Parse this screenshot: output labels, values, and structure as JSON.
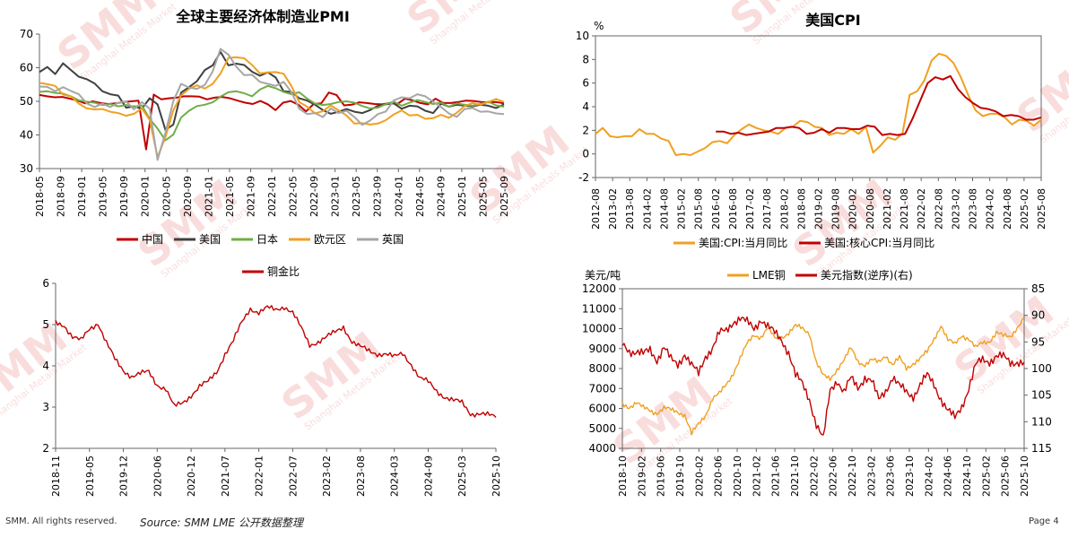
{
  "page": {
    "copyright": "SMM. All rights reserved.",
    "source": "Source: SMM  LME 公开数据整理",
    "page_label": "Page 4",
    "watermark_logo": "SMM",
    "watermark_sub": "Shanghai Metals Market"
  },
  "chart_data": [
    {
      "id": "pmi",
      "type": "line",
      "title": "全球主要经济体制造业PMI",
      "ylim": [
        30,
        70
      ],
      "yticks": [
        "30",
        "40",
        "50",
        "60",
        "70"
      ],
      "xticks": [
        "2018-05",
        "2018-09",
        "2019-01",
        "2019-05",
        "2019-09",
        "2020-01",
        "2020-05",
        "2020-09",
        "2021-01",
        "2021-05",
        "2021-09",
        "2022-01",
        "2022-05",
        "2022-09",
        "2023-01",
        "2023-05",
        "2023-09",
        "2024-01",
        "2024-05",
        "2024-09",
        "2025-01",
        "2025-05",
        "2025-09"
      ],
      "legend": [
        "中国",
        "美国",
        "日本",
        "欧元区",
        "英国"
      ],
      "series": [
        {
          "name": "中国",
          "color": "#c00000",
          "values": [
            51.9,
            51.5,
            51.2,
            51.3,
            50.8,
            50.2,
            49.4,
            50.0,
            49.5,
            49.2,
            49.4,
            49.8,
            50.0,
            50.2,
            35.7,
            52.0,
            50.6,
            50.9,
            51.1,
            51.5,
            51.5,
            51.4,
            50.6,
            51.1,
            51.3,
            50.9,
            50.2,
            49.6,
            49.2,
            50.1,
            49.1,
            47.4,
            49.6,
            50.1,
            49.0,
            47.0,
            49.2,
            49.4,
            52.6,
            51.9,
            48.8,
            49.0,
            49.7,
            49.5,
            49.2,
            49.1,
            49.5,
            49.2,
            50.8,
            50.3,
            49.5,
            49.1,
            50.8,
            49.5,
            49.5,
            49.8,
            50.2,
            50.1,
            49.8,
            49.7,
            49.8,
            49.4
          ]
        },
        {
          "name": "美国",
          "color": "#404040",
          "values": [
            58.7,
            60.2,
            58.1,
            61.3,
            59.3,
            57.3,
            56.6,
            55.3,
            53.0,
            52.1,
            51.7,
            48.1,
            48.5,
            47.8,
            50.9,
            49.1,
            41.5,
            43.1,
            52.6,
            54.2,
            56.0,
            59.3,
            60.7,
            64.7,
            60.7,
            61.2,
            60.8,
            58.8,
            57.6,
            58.6,
            57.1,
            53.0,
            52.8,
            50.9,
            50.2,
            49.0,
            47.4,
            46.3,
            46.9,
            47.7,
            46.9,
            46.5,
            47.4,
            48.7,
            49.1,
            49.4,
            47.8,
            48.7,
            48.5,
            47.2,
            46.5,
            49.3,
            48.4,
            49.0,
            48.7,
            48.5,
            49.0,
            48.7,
            48.0,
            49.1
          ]
        },
        {
          "name": "日本",
          "color": "#70ad47",
          "values": [
            52.8,
            53.0,
            52.5,
            52.3,
            51.5,
            50.3,
            49.9,
            49.6,
            48.9,
            49.2,
            48.5,
            48.9,
            48.4,
            48.8,
            44.8,
            41.9,
            38.4,
            40.1,
            45.2,
            47.2,
            48.6,
            49.0,
            49.7,
            51.4,
            52.7,
            53.0,
            52.4,
            51.5,
            53.5,
            54.6,
            53.9,
            52.8,
            52.1,
            52.7,
            50.8,
            49.3,
            48.9,
            49.2,
            49.8,
            50.0,
            49.6,
            48.6,
            47.9,
            48.1,
            49.2,
            49.9,
            48.7,
            49.6,
            50.4,
            49.8,
            49.2,
            49.6,
            48.4,
            49.4,
            49.0,
            48.7,
            49.2,
            49.9,
            48.8,
            48.4
          ]
        },
        {
          "name": "欧元区",
          "color": "#f0a020",
          "values": [
            55.5,
            55.1,
            54.6,
            52.0,
            51.5,
            49.3,
            47.9,
            47.6,
            47.7,
            46.9,
            46.5,
            45.7,
            46.3,
            47.9,
            44.5,
            33.4,
            39.4,
            47.4,
            51.8,
            53.7,
            54.8,
            53.8,
            55.2,
            58.3,
            62.9,
            63.1,
            62.8,
            60.8,
            58.3,
            58.6,
            58.7,
            58.2,
            54.6,
            49.8,
            48.4,
            46.4,
            47.1,
            48.8,
            47.3,
            45.8,
            43.4,
            43.5,
            43.1,
            43.4,
            44.4,
            46.1,
            47.3,
            45.8,
            46.0,
            44.8,
            45.0,
            46.0,
            45.1,
            46.6,
            48.6,
            49.5,
            49.0,
            49.8,
            50.7,
            49.8
          ]
        },
        {
          "name": "英国",
          "color": "#a6a6a6",
          "values": [
            54.4,
            54.3,
            53.0,
            54.2,
            53.1,
            52.1,
            49.4,
            48.3,
            49.3,
            48.3,
            49.6,
            50.0,
            47.6,
            49.8,
            47.8,
            32.6,
            40.7,
            50.1,
            55.2,
            54.1,
            53.7,
            54.9,
            58.9,
            65.6,
            63.9,
            60.3,
            57.8,
            57.9,
            55.8,
            55.2,
            54.6,
            55.8,
            52.8,
            47.8,
            46.2,
            46.5,
            45.3,
            47.9,
            46.5,
            47.2,
            45.3,
            43.0,
            44.3,
            46.2,
            47.0,
            50.3,
            51.2,
            50.9,
            52.1,
            51.5,
            49.9,
            48.3,
            46.4,
            45.4,
            47.7,
            48.0,
            46.9,
            47.0,
            46.4,
            46.2
          ]
        }
      ]
    },
    {
      "id": "cpi",
      "type": "line",
      "title": "美国CPI",
      "ylabel": "%",
      "ylim": [
        -2,
        10
      ],
      "yticks": [
        "-2",
        "0",
        "2",
        "4",
        "6",
        "8",
        "10"
      ],
      "xticks": [
        "2012-08",
        "2013-02",
        "2013-08",
        "2014-02",
        "2014-08",
        "2015-02",
        "2015-08",
        "2016-02",
        "2016-08",
        "2017-02",
        "2017-08",
        "2018-02",
        "2018-08",
        "2019-02",
        "2019-08",
        "2020-02",
        "2020-08",
        "2021-02",
        "2021-08",
        "2022-02",
        "2022-08",
        "2023-02",
        "2023-08",
        "2024-02",
        "2024-08",
        "2025-02",
        "2025-08"
      ],
      "legend": [
        "美国:CPI:当月同比",
        "美国:核心CPI:当月同比"
      ],
      "series": [
        {
          "name": "美国:CPI:当月同比",
          "color": "#f0a020",
          "values": [
            1.7,
            2.2,
            1.5,
            1.4,
            1.5,
            1.5,
            2.1,
            1.7,
            1.7,
            1.3,
            1.1,
            -0.1,
            0.0,
            -0.1,
            0.2,
            0.5,
            1.0,
            1.1,
            0.9,
            1.6,
            2.1,
            2.5,
            2.2,
            2.0,
            1.9,
            1.7,
            2.2,
            2.3,
            2.8,
            2.7,
            2.3,
            2.2,
            1.6,
            1.8,
            1.7,
            2.1,
            1.7,
            2.3,
            0.1,
            0.7,
            1.4,
            1.2,
            1.7,
            5.0,
            5.3,
            6.2,
            7.9,
            8.5,
            8.3,
            7.7,
            6.5,
            5.0,
            3.7,
            3.2,
            3.4,
            3.4,
            3.1,
            2.5,
            2.9,
            2.8,
            2.4,
            2.9
          ]
        },
        {
          "name": "美国:核心CPI:当月同比",
          "color": "#c00000",
          "values": [
            1.9,
            1.9,
            1.7,
            1.8,
            1.6,
            1.7,
            1.8,
            1.9,
            2.2,
            2.2,
            2.3,
            2.2,
            1.7,
            1.8,
            2.1,
            1.8,
            2.2,
            2.2,
            2.1,
            2.1,
            2.4,
            2.3,
            1.6,
            1.7,
            1.6,
            1.7,
            3.0,
            4.5,
            6.0,
            6.5,
            6.3,
            6.6,
            5.5,
            4.8,
            4.3,
            3.9,
            3.8,
            3.6,
            3.2,
            3.3,
            3.2,
            2.9,
            2.9,
            3.1
          ]
        }
      ]
    },
    {
      "id": "copper_gold",
      "type": "line",
      "title": "",
      "legend": [
        "铜金比"
      ],
      "ylim": [
        2,
        6
      ],
      "yticks": [
        "2",
        "3",
        "4",
        "5",
        "6"
      ],
      "xticks": [
        "2018-11",
        "2019-05",
        "2019-12",
        "2020-06",
        "2020-12",
        "2021-07",
        "2022-01",
        "2022-07",
        "2023-02",
        "2023-08",
        "2024-03",
        "2024-09",
        "2025-03",
        "2025-10"
      ],
      "series": [
        {
          "name": "铜金比",
          "color": "#c00000",
          "values": [
            5.05,
            5.0,
            4.7,
            4.6,
            4.9,
            5.05,
            4.55,
            4.15,
            3.9,
            3.75,
            3.8,
            3.85,
            3.55,
            3.45,
            3.0,
            3.1,
            3.3,
            3.5,
            3.6,
            3.85,
            4.3,
            4.6,
            5.05,
            5.4,
            5.3,
            5.4,
            5.35,
            5.45,
            5.3,
            4.9,
            4.5,
            4.6,
            4.7,
            4.8,
            4.95,
            4.6,
            4.45,
            4.35,
            4.3,
            4.3,
            4.2,
            4.3,
            4.05,
            3.7,
            3.6,
            3.4,
            3.25,
            3.15,
            3.1,
            2.85,
            2.85,
            2.8,
            2.75
          ]
        }
      ]
    },
    {
      "id": "lme_usd",
      "type": "line",
      "title": "",
      "ylabel": "美元/吨",
      "ylim": [
        4000,
        12000
      ],
      "yticks": [
        "4000",
        "5000",
        "6000",
        "7000",
        "8000",
        "9000",
        "10000",
        "11000",
        "12000"
      ],
      "y2lim": [
        115,
        85
      ],
      "y2ticks": [
        "85",
        "90",
        "95",
        "100",
        "105",
        "110",
        "115"
      ],
      "xticks": [
        "2018-10",
        "2019-02",
        "2019-06",
        "2019-10",
        "2020-02",
        "2020-06",
        "2020-10",
        "2021-02",
        "2021-06",
        "2021-10",
        "2022-02",
        "2022-06",
        "2022-10",
        "2023-02",
        "2023-06",
        "2023-10",
        "2024-02",
        "2024-06",
        "2024-10",
        "2025-02",
        "2025-06",
        "2025-10"
      ],
      "legend": [
        "LME铜",
        "美元指数(逆序)(右)"
      ],
      "series": [
        {
          "name": "LME铜",
          "axis": "left",
          "color": "#f0a020",
          "values": [
            6200,
            6100,
            6300,
            6000,
            5900,
            5800,
            6000,
            5900,
            5850,
            5700,
            4700,
            5200,
            5700,
            6500,
            6700,
            7200,
            7800,
            8500,
            9200,
            9700,
            9600,
            10000,
            9500,
            9600,
            9800,
            10100,
            10000,
            9800,
            8300,
            7600,
            7500,
            8000,
            8400,
            9000,
            8400,
            8200,
            8400,
            8300,
            8700,
            8200,
            8500,
            8000,
            8300,
            8500,
            8800,
            9500,
            10200,
            9400,
            9200,
            9700,
            9500,
            9000,
            9300,
            9400,
            9800,
            9600,
            9600,
            10100,
            10500
          ]
        },
        {
          "name": "美元指数(逆序)(右)",
          "axis": "right",
          "color": "#c00000",
          "values": [
            95.5,
            96.5,
            96.8,
            97.5,
            96.5,
            98.2,
            96.0,
            98.5,
            99.2,
            97.0,
            99.5,
            101.2,
            97.5,
            96.0,
            93.5,
            93.0,
            91.0,
            90.5,
            91.5,
            92.5,
            90.5,
            92.2,
            93.5,
            94.5,
            96.8,
            101.5,
            103.0,
            105.5,
            110.5,
            113.5,
            104.0,
            102.0,
            104.5,
            102.0,
            103.5,
            101.5,
            102.5,
            106.0,
            104.0,
            101.5,
            103.5,
            104.5,
            105.0,
            103.0,
            101.5,
            103.0,
            105.5,
            108.0,
            109.5,
            107.0,
            103.5,
            99.5,
            98.5,
            98.5,
            97.5,
            98.0,
            99.0,
            98.5,
            98.8
          ]
        }
      ]
    }
  ]
}
